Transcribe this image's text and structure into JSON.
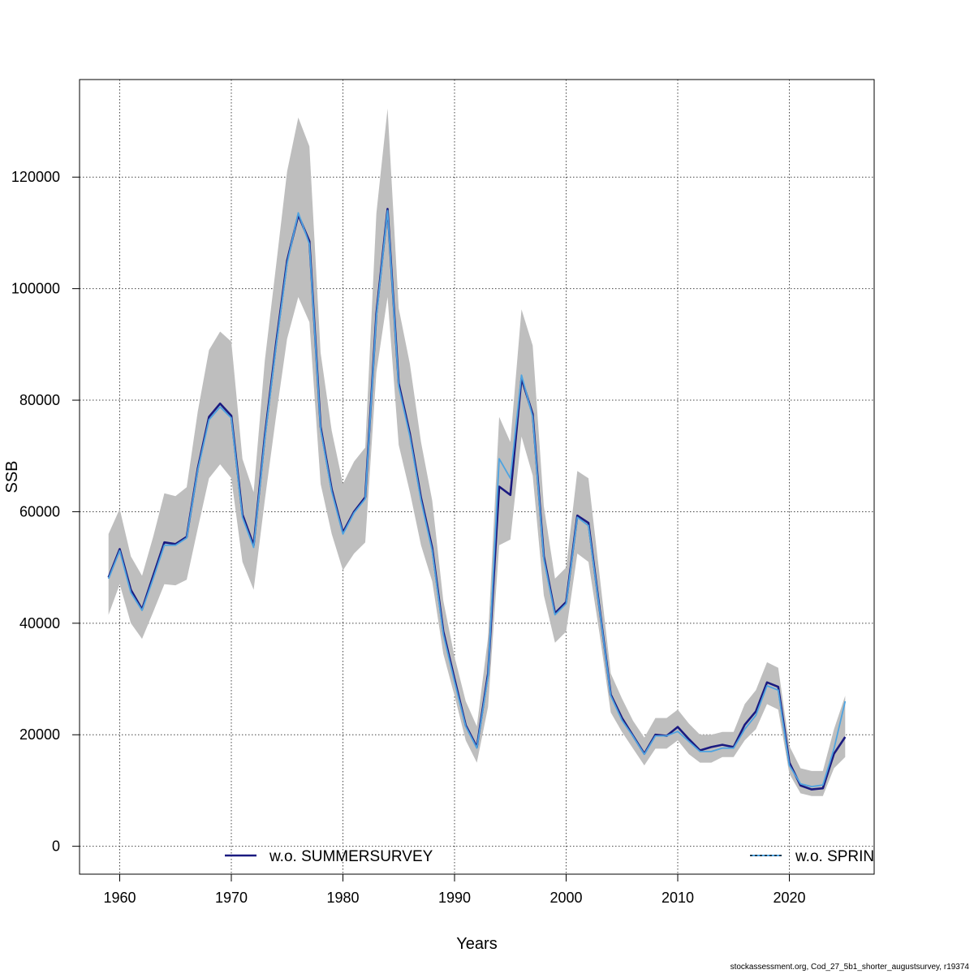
{
  "chart_data": {
    "type": "line",
    "xlabel": "Years",
    "ylabel": "SSB",
    "xlim": [
      1956.4,
      2027.6
    ],
    "ylim": [
      -5000,
      137500
    ],
    "xticks": [
      1960,
      1970,
      1980,
      1990,
      2000,
      2010,
      2020
    ],
    "yticks": [
      0,
      20000,
      40000,
      60000,
      80000,
      100000,
      120000
    ],
    "grid": true,
    "legend_placement": "bottom",
    "x": [
      1959,
      1960,
      1961,
      1962,
      1963,
      1964,
      1965,
      1966,
      1967,
      1968,
      1969,
      1970,
      1971,
      1972,
      1973,
      1974,
      1975,
      1976,
      1977,
      1978,
      1979,
      1980,
      1981,
      1982,
      1983,
      1984,
      1985,
      1986,
      1987,
      1988,
      1989,
      1990,
      1991,
      1992,
      1993,
      1994,
      1995,
      1996,
      1997,
      1998,
      1999,
      2000,
      2001,
      2002,
      2003,
      2004,
      2005,
      2006,
      2007,
      2008,
      2009,
      2010,
      2011,
      2012,
      2013,
      2014,
      2015,
      2016,
      2017,
      2018,
      2019,
      2020,
      2021,
      2022,
      2023,
      2024,
      2025
    ],
    "band": {
      "color": "#bebebe",
      "lower": [
        41500,
        47000,
        40000,
        37200,
        42000,
        47000,
        46800,
        47800,
        57000,
        66000,
        68500,
        66000,
        51000,
        46000,
        62000,
        77000,
        91000,
        98500,
        94000,
        65000,
        56000,
        49500,
        52500,
        54500,
        85000,
        98500,
        72000,
        63500,
        54000,
        47500,
        34500,
        27000,
        19000,
        15000,
        25000,
        54000,
        55000,
        73500,
        66500,
        45000,
        36500,
        38500,
        52500,
        51000,
        38000,
        24000,
        20500,
        17500,
        14500,
        17500,
        17500,
        19000,
        16500,
        15000,
        15000,
        16000,
        16000,
        19000,
        21000,
        25500,
        24500,
        13000,
        9500,
        9000,
        9000,
        14000,
        16000
      ],
      "upper": [
        56000,
        60500,
        52000,
        48500,
        55500,
        63300,
        62800,
        64400,
        78000,
        89000,
        92300,
        90500,
        69500,
        63500,
        87000,
        104000,
        121000,
        130700,
        125500,
        88500,
        74500,
        65000,
        69000,
        71500,
        113500,
        132300,
        96500,
        86500,
        72500,
        62000,
        44000,
        34000,
        26000,
        21500,
        37500,
        77000,
        72500,
        96300,
        89800,
        61000,
        48000,
        50000,
        67300,
        66000,
        48500,
        31000,
        26500,
        22500,
        19500,
        23000,
        23000,
        24500,
        22000,
        20000,
        20000,
        20500,
        20500,
        25500,
        28000,
        33000,
        32000,
        18000,
        14000,
        13500,
        13500,
        21000,
        27000
      ]
    },
    "series": [
      {
        "name": "w.o. SUMMERSURVEY",
        "color": "#1a1a80",
        "values": [
          48200,
          53300,
          46000,
          42500,
          48500,
          54500,
          54200,
          55500,
          67800,
          77000,
          79400,
          77200,
          59500,
          54000,
          73500,
          90000,
          105000,
          113200,
          108500,
          75200,
          64000,
          56300,
          60000,
          62600,
          95500,
          114300,
          83000,
          74000,
          62500,
          53500,
          38500,
          30000,
          21700,
          17800,
          31000,
          64500,
          63000,
          83900,
          77500,
          52000,
          41800,
          43800,
          59300,
          58000,
          42500,
          27200,
          23000,
          19800,
          16600,
          20000,
          19800,
          21400,
          19200,
          17200,
          17800,
          18200,
          17800,
          21800,
          24200,
          29400,
          28600,
          15000,
          10900,
          10200,
          10400,
          16600,
          19600
        ]
      },
      {
        "name": "w.o. SPRINGSURVEY",
        "color": "#4ea3e0",
        "values": [
          48000,
          53000,
          45500,
          42300,
          48000,
          54000,
          54000,
          55300,
          67500,
          76500,
          78800,
          76800,
          59000,
          53600,
          73000,
          89500,
          104500,
          113600,
          108000,
          74800,
          63600,
          56000,
          59800,
          62300,
          95000,
          114000,
          82500,
          73500,
          62000,
          53000,
          38000,
          29500,
          21500,
          17600,
          30500,
          69500,
          66000,
          84500,
          77000,
          51500,
          41500,
          43500,
          59000,
          57500,
          42300,
          27000,
          22600,
          19700,
          16500,
          19800,
          19800,
          20600,
          18800,
          17000,
          17000,
          17600,
          17600,
          21000,
          23500,
          28800,
          28000,
          14500,
          11200,
          10700,
          11000,
          17500,
          26000
        ]
      }
    ]
  },
  "footnote": "stockassessment.org, Cod_27_5b1_shorter_augustsurvey, r19374"
}
